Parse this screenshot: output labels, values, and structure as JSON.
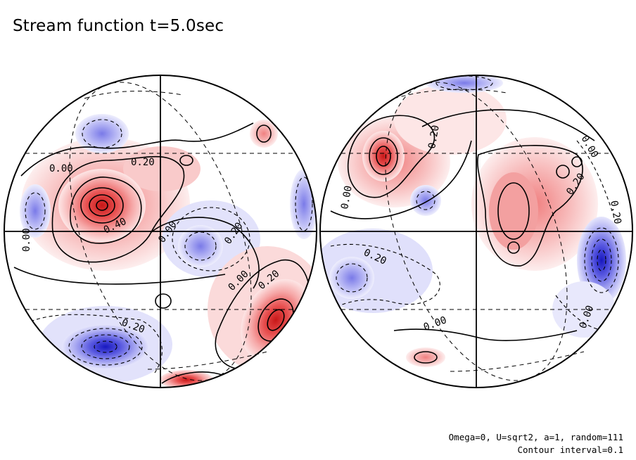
{
  "title": "Stream function t=5.0sec",
  "notes": {
    "params": "Omega=0, U=sqrt2, a=1, random=111",
    "interval": "Contour interval=0.1"
  },
  "colors": {
    "positive_fill": "#f08080",
    "positive_deep": "#d92020",
    "negative_fill": "#8a8ae8",
    "negative_deep": "#2020c8",
    "line": "#000000",
    "grid": "#000000"
  },
  "left_hemisphere": {
    "contour_labels": [
      "0.00",
      "0.20",
      "0.00",
      "0.40",
      "0.00",
      "0.20",
      "0.00",
      "0.20",
      "0.20"
    ]
  },
  "right_hemisphere": {
    "contour_labels": [
      "0.20",
      "0.00",
      "0.00",
      "0.20",
      "0.20",
      "0.20",
      "0.00",
      "0.00"
    ]
  }
}
